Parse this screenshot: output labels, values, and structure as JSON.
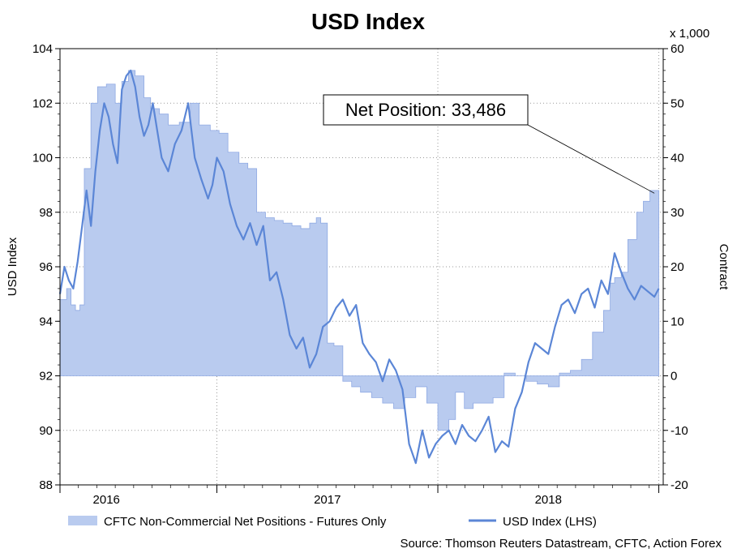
{
  "chart_data": {
    "type": "area",
    "title": "USD Index",
    "left_axis_label": "USD Index",
    "right_axis_label": "Contract",
    "right_axis_multiplier": "x 1,000",
    "left_ylim": [
      88,
      104
    ],
    "right_ylim": [
      -20,
      60
    ],
    "xlim": [
      2015.79,
      2018.52
    ],
    "left_ticks": [
      "88",
      "90",
      "92",
      "94",
      "96",
      "98",
      "100",
      "102",
      "104"
    ],
    "right_ticks": [
      "-20",
      "-10",
      "0",
      "10",
      "20",
      "30",
      "40",
      "50",
      "60"
    ],
    "x_ticks": [
      {
        "label": "2016",
        "x": 2016.0
      },
      {
        "label": "2017",
        "x": 2017.0
      },
      {
        "label": "2018",
        "x": 2018.0
      }
    ],
    "x_year_separators": [
      2015.79,
      2016.5,
      2017.5,
      2018.5
    ],
    "grid": true,
    "legend_position": "bottom",
    "colors": {
      "area_fill": "#b9cbef",
      "area_edge": "#8fa9e3",
      "line": "#5b86d6"
    },
    "series": [
      {
        "name": "CFTC Non-Commercial Net Positions - Futures Only",
        "axis": "right",
        "type": "area",
        "x": [
          2015.79,
          2015.82,
          2015.84,
          2015.86,
          2015.88,
          2015.9,
          2015.93,
          2015.96,
          2016.0,
          2016.04,
          2016.07,
          2016.1,
          2016.13,
          2016.17,
          2016.2,
          2016.24,
          2016.28,
          2016.33,
          2016.38,
          2016.42,
          2016.47,
          2016.51,
          2016.55,
          2016.6,
          2016.64,
          2016.68,
          2016.72,
          2016.76,
          2016.8,
          2016.84,
          2016.88,
          2016.92,
          2016.95,
          2016.97,
          2017.0,
          2017.03,
          2017.07,
          2017.11,
          2017.15,
          2017.2,
          2017.25,
          2017.3,
          2017.35,
          2017.4,
          2017.45,
          2017.5,
          2017.55,
          2017.58,
          2017.62,
          2017.66,
          2017.7,
          2017.75,
          2017.8,
          2017.85,
          2017.9,
          2017.95,
          2018.0,
          2018.05,
          2018.1,
          2018.15,
          2018.2,
          2018.25,
          2018.28,
          2018.3,
          2018.33,
          2018.36,
          2018.4,
          2018.43,
          2018.46,
          2018.5
        ],
        "values": [
          14.0,
          16.0,
          13.0,
          12.0,
          13.0,
          38.0,
          50.0,
          53.0,
          53.5,
          50.0,
          54.0,
          56.0,
          55.0,
          51.0,
          49.0,
          48.0,
          46.0,
          46.5,
          50.0,
          46.0,
          45.0,
          44.5,
          41.0,
          39.0,
          38.0,
          30.0,
          29.0,
          28.5,
          28.0,
          27.5,
          27.0,
          28.0,
          29.0,
          28.0,
          6.0,
          5.5,
          -1.0,
          -2.0,
          -3.0,
          -4.0,
          -5.0,
          -6.0,
          -4.0,
          -2.0,
          -5.0,
          -10.0,
          -8.0,
          -3.0,
          -6.0,
          -5.0,
          -5.0,
          -4.0,
          0.5,
          0.0,
          -1.0,
          -1.5,
          -2.0,
          0.5,
          1.0,
          3.0,
          8.0,
          12.0,
          17.0,
          18.0,
          19.0,
          25.0,
          30.0,
          32.0,
          34.0,
          33.5
        ]
      },
      {
        "name": "USD Index (LHS)",
        "axis": "left",
        "type": "line",
        "x": [
          2015.79,
          2015.81,
          2015.83,
          2015.85,
          2015.87,
          2015.89,
          2015.91,
          2015.93,
          2015.95,
          2015.97,
          2015.99,
          2016.01,
          2016.03,
          2016.05,
          2016.07,
          2016.09,
          2016.11,
          2016.13,
          2016.15,
          2016.17,
          2016.19,
          2016.21,
          2016.23,
          2016.25,
          2016.28,
          2016.31,
          2016.34,
          2016.37,
          2016.4,
          2016.43,
          2016.46,
          2016.48,
          2016.5,
          2016.53,
          2016.56,
          2016.59,
          2016.62,
          2016.65,
          2016.68,
          2016.71,
          2016.74,
          2016.77,
          2016.8,
          2016.83,
          2016.86,
          2016.89,
          2016.92,
          2016.95,
          2016.98,
          2017.01,
          2017.04,
          2017.07,
          2017.1,
          2017.13,
          2017.16,
          2017.19,
          2017.22,
          2017.25,
          2017.28,
          2017.31,
          2017.34,
          2017.37,
          2017.4,
          2017.43,
          2017.46,
          2017.49,
          2017.52,
          2017.55,
          2017.58,
          2017.61,
          2017.64,
          2017.67,
          2017.7,
          2017.73,
          2017.76,
          2017.79,
          2017.82,
          2017.85,
          2017.88,
          2017.91,
          2017.94,
          2017.97,
          2018.0,
          2018.03,
          2018.06,
          2018.09,
          2018.12,
          2018.15,
          2018.18,
          2018.21,
          2018.24,
          2018.27,
          2018.3,
          2018.33,
          2018.36,
          2018.39,
          2018.42,
          2018.45,
          2018.48,
          2018.5
        ],
        "values": [
          95.0,
          96.0,
          95.5,
          95.2,
          96.2,
          97.5,
          98.8,
          97.5,
          99.5,
          101.0,
          102.0,
          101.5,
          100.5,
          99.8,
          102.5,
          103.0,
          103.2,
          102.6,
          101.5,
          100.8,
          101.2,
          102.0,
          101.0,
          100.0,
          99.5,
          100.5,
          101.0,
          102.0,
          100.0,
          99.2,
          98.5,
          99.0,
          100.0,
          99.5,
          98.3,
          97.5,
          97.0,
          97.6,
          96.8,
          97.5,
          95.5,
          95.8,
          94.8,
          93.5,
          93.0,
          93.4,
          92.3,
          92.8,
          93.8,
          94.0,
          94.5,
          94.8,
          94.2,
          94.6,
          93.2,
          92.8,
          92.5,
          91.8,
          92.6,
          92.2,
          91.5,
          89.5,
          88.8,
          90.0,
          89.0,
          89.5,
          89.8,
          90.0,
          89.5,
          90.2,
          89.8,
          89.6,
          90.0,
          90.5,
          89.2,
          89.6,
          89.4,
          90.8,
          91.4,
          92.5,
          93.2,
          93.0,
          92.8,
          93.8,
          94.6,
          94.8,
          94.3,
          95.0,
          95.2,
          94.5,
          95.5,
          95.0,
          96.5,
          95.8,
          95.2,
          94.8,
          95.3,
          95.1,
          94.9,
          95.2
        ]
      }
    ],
    "annotation": {
      "text": "Net Position: 33,486",
      "points_to_x": 2018.48,
      "points_to_value": 33.486
    },
    "legend": [
      {
        "label": "CFTC Non-Commercial Net Positions - Futures Only",
        "kind": "area"
      },
      {
        "label": "USD Index (LHS)",
        "kind": "line"
      }
    ],
    "source": "Source: Thomson Reuters Datastream, CFTC, Action Forex"
  }
}
